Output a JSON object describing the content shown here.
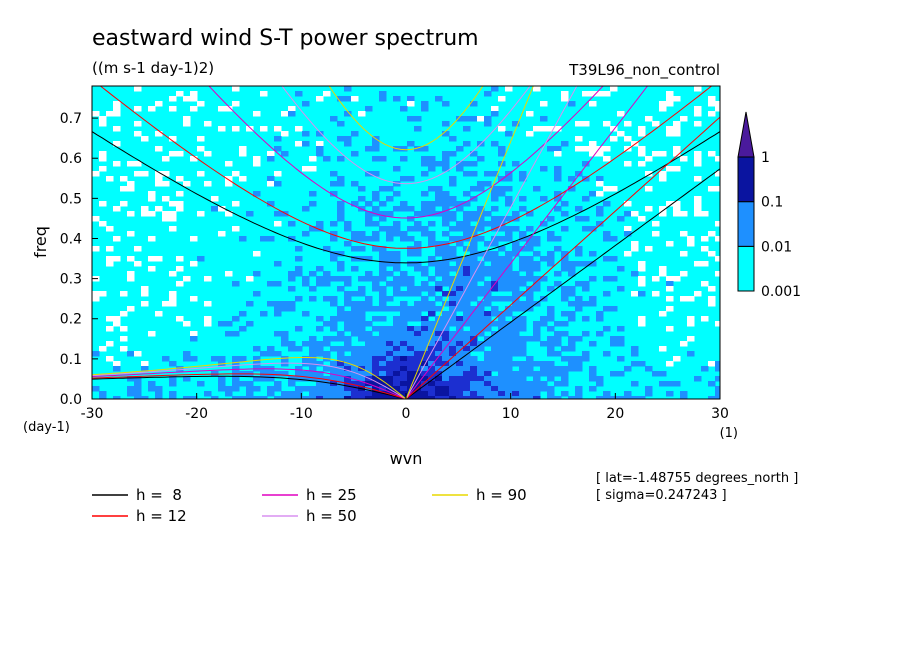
{
  "chart_data": {
    "type": "heatmap",
    "title": "eastward wind S-T power spectrum",
    "subtitle": "((m s-1 day-1)2)",
    "run_label": "T39L96_non_control",
    "xlabel": "wvn",
    "ylabel": "freq",
    "x_units": "(1)",
    "y_units": "(day-1)",
    "xlim": [
      -30,
      30
    ],
    "ylim": [
      0,
      0.78
    ],
    "x_ticks": [
      "-30",
      "-20",
      "-10",
      "0",
      "10",
      "20",
      "30"
    ],
    "y_ticks": [
      "0.0",
      "0.1",
      "0.2",
      "0.3",
      "0.4",
      "0.5",
      "0.6",
      "0.7"
    ],
    "x_tick_values": [
      -30,
      -20,
      -10,
      0,
      10,
      20,
      30
    ],
    "y_tick_values": [
      0,
      0.1,
      0.2,
      0.3,
      0.4,
      0.5,
      0.6,
      0.7
    ],
    "colorbar": {
      "levels": [
        "0.001",
        "0.01",
        "0.1",
        "1"
      ],
      "colors": [
        "#ffffff",
        "#00ffff",
        "#1e90ff",
        "#1c2fd0",
        "#0a14a0",
        "#4a1a9c"
      ]
    },
    "dispersion_curves": [
      {
        "label": "h =  8",
        "depth": 8,
        "color": "#000000"
      },
      {
        "label": "h = 12",
        "depth": 12,
        "color": "#ff0000"
      },
      {
        "label": "h = 25",
        "depth": 25,
        "color": "#e000c0"
      },
      {
        "label": "h = 50",
        "depth": 50,
        "color": "#d890f0"
      },
      {
        "label": "h = 90",
        "depth": 90,
        "color": "#e8d800"
      }
    ],
    "annotations": [
      "[ lat=-1.48755 degrees_north ]",
      "[ sigma=0.247243 ]"
    ]
  }
}
